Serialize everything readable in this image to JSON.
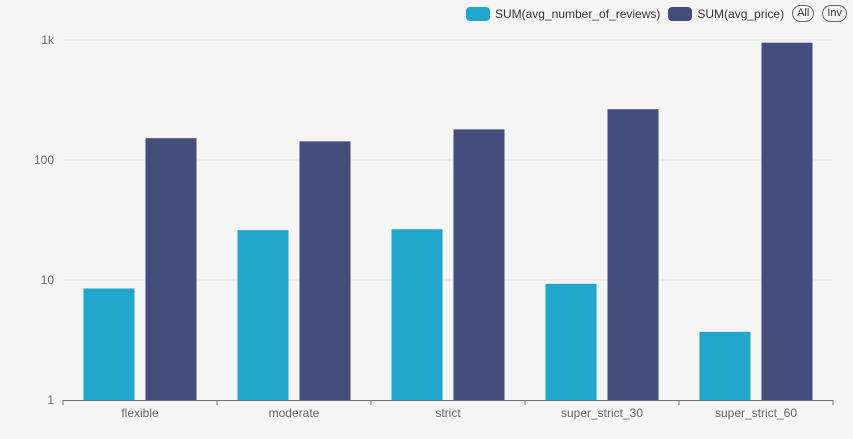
{
  "legend": {
    "items": [
      {
        "label": "SUM(avg_number_of_reviews)",
        "color": "#21a7cc"
      },
      {
        "label": "SUM(avg_price)",
        "color": "#444d7c"
      }
    ],
    "all_label": "All",
    "inv_label": "Inv"
  },
  "chart_data": {
    "type": "bar",
    "categories": [
      "flexible",
      "moderate",
      "strict",
      "super_strict_30",
      "super_strict_60"
    ],
    "series": [
      {
        "name": "SUM(avg_number_of_reviews)",
        "color": "#21a7cc",
        "values": [
          8.5,
          26,
          26.5,
          9.3,
          3.7
        ]
      },
      {
        "name": "SUM(avg_price)",
        "color": "#444d7c",
        "values": [
          152,
          143,
          180,
          265,
          950
        ]
      }
    ],
    "y_scale": "log",
    "ylim": [
      1,
      1000
    ],
    "y_ticks": [
      {
        "value": 1,
        "label": "1"
      },
      {
        "value": 10,
        "label": "10"
      },
      {
        "value": 100,
        "label": "100"
      },
      {
        "value": 1000,
        "label": "1k"
      }
    ],
    "grid": true,
    "legend_position": "top-right",
    "xlabel": "",
    "ylabel": ""
  }
}
